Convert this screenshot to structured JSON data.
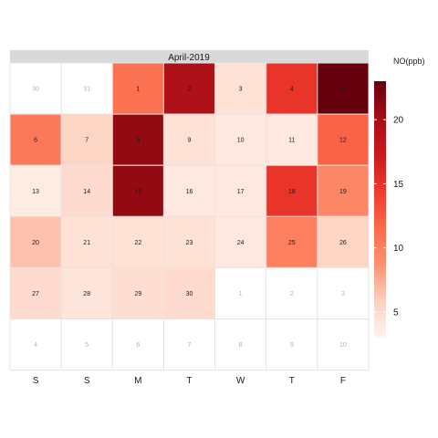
{
  "chart_data": {
    "type": "heatmap",
    "title": "April-2019",
    "weekday_labels": [
      "S",
      "S",
      "M",
      "T",
      "W",
      "T",
      "F"
    ],
    "legend": {
      "title": "NO(ppb)",
      "range": [
        3,
        23
      ],
      "ticks": [
        5,
        10,
        15,
        20
      ],
      "colors": [
        "#fff5f0",
        "#fdd0bf",
        "#fc9272",
        "#fb6a4a",
        "#ef3b2c",
        "#cb181d",
        "#a50f15",
        "#67000d"
      ]
    },
    "weeks": [
      [
        {
          "day": "30",
          "value": null
        },
        {
          "day": "31",
          "value": null
        },
        {
          "day": "1",
          "value": 11
        },
        {
          "day": "2",
          "value": 19.5
        },
        {
          "day": "3",
          "value": 4.5
        },
        {
          "day": "4",
          "value": 15
        },
        {
          "day": "5",
          "value": 23
        }
      ],
      [
        {
          "day": "6",
          "value": 10.5
        },
        {
          "day": "7",
          "value": 5.5
        },
        {
          "day": "8",
          "value": 21
        },
        {
          "day": "9",
          "value": 4.5
        },
        {
          "day": "10",
          "value": 4
        },
        {
          "day": "11",
          "value": 4
        },
        {
          "day": "12",
          "value": 12
        }
      ],
      [
        {
          "day": "13",
          "value": 3.8
        },
        {
          "day": "14",
          "value": 5
        },
        {
          "day": "15",
          "value": 21
        },
        {
          "day": "16",
          "value": 4
        },
        {
          "day": "17",
          "value": 4
        },
        {
          "day": "18",
          "value": 15
        },
        {
          "day": "19",
          "value": 9.5
        }
      ],
      [
        {
          "day": "20",
          "value": 6.5
        },
        {
          "day": "21",
          "value": 4.5
        },
        {
          "day": "22",
          "value": 4.5
        },
        {
          "day": "23",
          "value": 4.5
        },
        {
          "day": "24",
          "value": 4
        },
        {
          "day": "25",
          "value": 10
        },
        {
          "day": "26",
          "value": 5.5
        }
      ],
      [
        {
          "day": "27",
          "value": 5
        },
        {
          "day": "28",
          "value": 4.2
        },
        {
          "day": "29",
          "value": 4.8
        },
        {
          "day": "30",
          "value": 5
        },
        {
          "day": "1",
          "value": null
        },
        {
          "day": "2",
          "value": null
        },
        {
          "day": "3",
          "value": null
        }
      ],
      [
        {
          "day": "4",
          "value": null
        },
        {
          "day": "5",
          "value": null
        },
        {
          "day": "6",
          "value": null
        },
        {
          "day": "7",
          "value": null
        },
        {
          "day": "8",
          "value": null
        },
        {
          "day": "9",
          "value": null
        },
        {
          "day": "10",
          "value": null
        }
      ]
    ]
  }
}
